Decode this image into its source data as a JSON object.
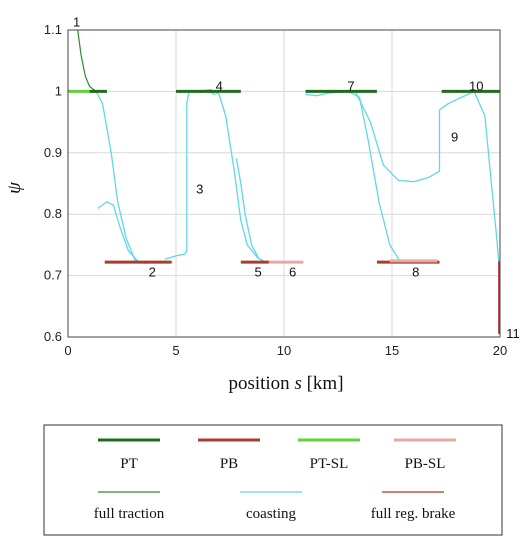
{
  "chart_data": {
    "type": "line",
    "title": "",
    "xlabel_prefix": "position ",
    "xlabel_var": "s",
    "xlabel_unit": " [km]",
    "ylabel": "ψ",
    "xlim": [
      0,
      20
    ],
    "ylim": [
      0.6,
      1.1
    ],
    "xticks": [
      0,
      5,
      10,
      15,
      20
    ],
    "yticks": [
      0.6,
      0.7,
      0.8,
      0.9,
      1,
      1.1
    ],
    "xtick_labels": [
      "0",
      "5",
      "10",
      "15",
      "20"
    ],
    "ytick_labels": [
      "0.6",
      "0.7",
      "0.8",
      "0.9",
      "1",
      "1.1"
    ],
    "grid": true,
    "legend_position": "bottom",
    "segments": [
      {
        "name": "PT",
        "color": "#1e6b1e",
        "width": 3,
        "points": [
          [
            1.0,
            1.0
          ],
          [
            1.8,
            1.0
          ]
        ]
      },
      {
        "name": "PT",
        "color": "#1e6b1e",
        "width": 3,
        "points": [
          [
            5.0,
            1.0
          ],
          [
            8.0,
            1.0
          ]
        ]
      },
      {
        "name": "PT",
        "color": "#1e6b1e",
        "width": 3,
        "points": [
          [
            11.0,
            1.0
          ],
          [
            14.3,
            1.0
          ]
        ]
      },
      {
        "name": "PT",
        "color": "#1e6b1e",
        "width": 3,
        "points": [
          [
            17.3,
            1.0
          ],
          [
            20.0,
            1.0
          ]
        ]
      },
      {
        "name": "PT-SL",
        "color": "#5fd13a",
        "width": 3,
        "points": [
          [
            0.0,
            1.0
          ],
          [
            1.0,
            1.0
          ]
        ]
      },
      {
        "name": "PB",
        "color": "#a93b32",
        "width": 3,
        "points": [
          [
            1.7,
            0.722
          ],
          [
            4.8,
            0.722
          ]
        ]
      },
      {
        "name": "PB",
        "color": "#a93b32",
        "width": 3,
        "points": [
          [
            8.0,
            0.722
          ],
          [
            9.3,
            0.722
          ]
        ]
      },
      {
        "name": "PB",
        "color": "#a93b32",
        "width": 3,
        "points": [
          [
            14.3,
            0.722
          ],
          [
            17.2,
            0.722
          ]
        ]
      },
      {
        "name": "PB-SL",
        "color": "#e6a9a2",
        "width": 3,
        "points": [
          [
            9.3,
            0.722
          ],
          [
            10.9,
            0.722
          ]
        ]
      },
      {
        "name": "PB-SL",
        "color": "#e6a9a2",
        "width": 3,
        "points": [
          [
            14.9,
            0.724
          ],
          [
            17.1,
            0.724
          ]
        ]
      }
    ],
    "curves": [
      {
        "name": "full traction",
        "color": "#2e8b2e",
        "width": 1.2,
        "points": [
          [
            0.45,
            1.1
          ],
          [
            0.6,
            1.06
          ],
          [
            0.8,
            1.025
          ],
          [
            1.0,
            1.008
          ],
          [
            1.3,
            1.0
          ]
        ]
      },
      {
        "name": "coasting",
        "color": "#5fd8e6",
        "width": 1.3,
        "points": [
          [
            1.3,
            1.0
          ],
          [
            1.6,
            0.98
          ],
          [
            2.0,
            0.9
          ],
          [
            2.3,
            0.82
          ],
          [
            2.7,
            0.76
          ],
          [
            3.1,
            0.725
          ],
          [
            3.6,
            0.72
          ],
          [
            4.0,
            0.722
          ]
        ]
      },
      {
        "name": "coasting",
        "color": "#5fd8e6",
        "width": 1.3,
        "points": [
          [
            1.4,
            0.81
          ],
          [
            1.8,
            0.82
          ],
          [
            2.1,
            0.815
          ],
          [
            2.4,
            0.78
          ],
          [
            2.8,
            0.74
          ],
          [
            3.2,
            0.725
          ]
        ]
      },
      {
        "name": "coasting",
        "color": "#5fd8e6",
        "width": 1.3,
        "points": [
          [
            4.5,
            0.727
          ],
          [
            5.1,
            0.733
          ],
          [
            5.4,
            0.735
          ],
          [
            5.5,
            0.74
          ],
          [
            5.5,
            0.98
          ],
          [
            5.6,
            1.0
          ],
          [
            6.5,
            1.0
          ],
          [
            6.8,
            0.995
          ]
        ]
      },
      {
        "name": "coasting",
        "color": "#5fd8e6",
        "width": 1.3,
        "points": [
          [
            6.0,
            1.0
          ],
          [
            6.6,
            1.003
          ],
          [
            7.0,
            0.995
          ],
          [
            7.3,
            0.96
          ],
          [
            7.7,
            0.87
          ],
          [
            8.0,
            0.79
          ],
          [
            8.3,
            0.75
          ],
          [
            8.8,
            0.728
          ],
          [
            9.2,
            0.722
          ]
        ]
      },
      {
        "name": "coasting",
        "color": "#5fd8e6",
        "width": 1.3,
        "points": [
          [
            7.8,
            0.89
          ],
          [
            8.0,
            0.85
          ],
          [
            8.2,
            0.8
          ],
          [
            8.5,
            0.75
          ],
          [
            8.8,
            0.73
          ]
        ]
      },
      {
        "name": "coasting",
        "color": "#5fd8e6",
        "width": 1.3,
        "points": [
          [
            11.0,
            0.995
          ],
          [
            11.5,
            0.993
          ],
          [
            12.0,
            0.997
          ],
          [
            13.0,
            1.0
          ],
          [
            13.5,
            0.99
          ],
          [
            13.9,
            0.92
          ],
          [
            14.4,
            0.82
          ],
          [
            14.9,
            0.75
          ],
          [
            15.4,
            0.722
          ]
        ]
      },
      {
        "name": "coasting",
        "color": "#5fd8e6",
        "width": 1.3,
        "points": [
          [
            13.3,
            1.0
          ],
          [
            14.0,
            0.95
          ],
          [
            14.6,
            0.88
          ],
          [
            15.3,
            0.855
          ],
          [
            16.0,
            0.853
          ],
          [
            16.7,
            0.86
          ],
          [
            17.2,
            0.87
          ],
          [
            17.2,
            0.97
          ],
          [
            17.6,
            0.98
          ],
          [
            18.2,
            0.99
          ],
          [
            18.8,
            1.0
          ],
          [
            19.3,
            0.96
          ],
          [
            19.6,
            0.85
          ],
          [
            19.85,
            0.76
          ],
          [
            19.95,
            0.72
          ]
        ]
      }
    ],
    "brake_curve": {
      "name": "full reg. brake",
      "color": "#b5302a",
      "width": 1.5,
      "points": [
        [
          19.95,
          0.723
        ],
        [
          19.95,
          0.605
        ]
      ]
    },
    "annotations": [
      {
        "text": "1",
        "x": 0.4,
        "y": 1.112
      },
      {
        "text": "2",
        "x": 3.9,
        "y": 0.705
      },
      {
        "text": "3",
        "x": 6.1,
        "y": 0.84
      },
      {
        "text": "4",
        "x": 7.0,
        "y": 1.008
      },
      {
        "text": "5",
        "x": 8.8,
        "y": 0.705
      },
      {
        "text": "6",
        "x": 10.4,
        "y": 0.705
      },
      {
        "text": "7",
        "x": 13.1,
        "y": 1.008
      },
      {
        "text": "8",
        "x": 16.1,
        "y": 0.705
      },
      {
        "text": "9",
        "x": 17.9,
        "y": 0.925
      },
      {
        "text": "10",
        "x": 18.9,
        "y": 1.008
      },
      {
        "text": "11",
        "x": 20.6,
        "y": 0.605
      }
    ]
  },
  "legend": [
    {
      "label": "PT",
      "color": "#1e6b1e",
      "width": 3
    },
    {
      "label": "PB",
      "color": "#a93b32",
      "width": 3
    },
    {
      "label": "PT-SL",
      "color": "#5fd13a",
      "width": 3
    },
    {
      "label": "PB-SL",
      "color": "#e6a9a2",
      "width": 3
    },
    {
      "label": "full traction",
      "color": "#2e8b2e",
      "width": 1.2
    },
    {
      "label": "coasting",
      "color": "#5fd8e6",
      "width": 1.2
    },
    {
      "label": "full reg. brake",
      "color": "#b5302a",
      "width": 1.2
    }
  ]
}
